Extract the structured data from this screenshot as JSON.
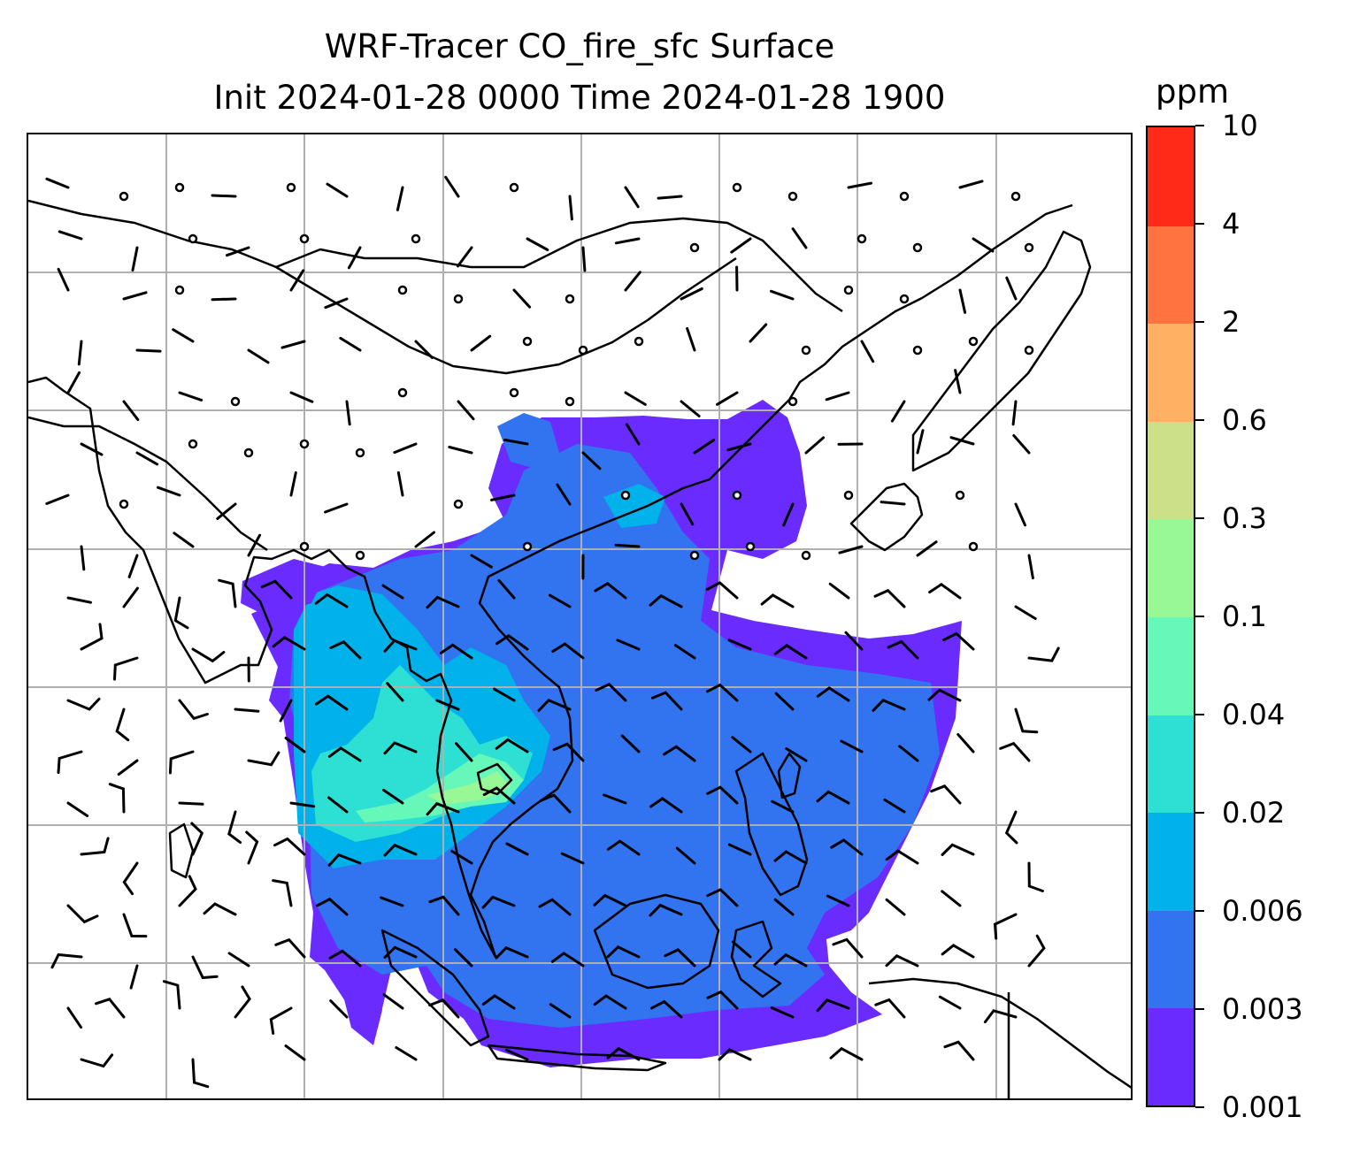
{
  "title_line1": "WRF-Tracer CO_fire_sfc Surface",
  "title_line2": "Init 2024-01-28 0000 Time 2024-01-28 1900",
  "colorbar": {
    "unit": "ppm",
    "ticks": [
      "0.001",
      "0.003",
      "0.006",
      "0.02",
      "0.04",
      "0.1",
      "0.3",
      "0.6",
      "2",
      "4",
      "10"
    ],
    "colors": [
      "#6a2bff",
      "#3273f0",
      "#00b1ea",
      "#2ee0d4",
      "#66f8b8",
      "#98f895",
      "#cce088",
      "#ffb062",
      "#ff7340",
      "#ff2b18"
    ]
  },
  "map": {
    "gridlines": true,
    "coastlines": true,
    "wind_barbs": true,
    "colors": {
      "level_0.001": "#6a2bff",
      "level_0.003": "#3273f0",
      "level_0.006": "#00b1ea",
      "level_0.02": "#2ee0d4",
      "level_0.04": "#66f8b8",
      "level_0.1": "#98f895"
    }
  }
}
